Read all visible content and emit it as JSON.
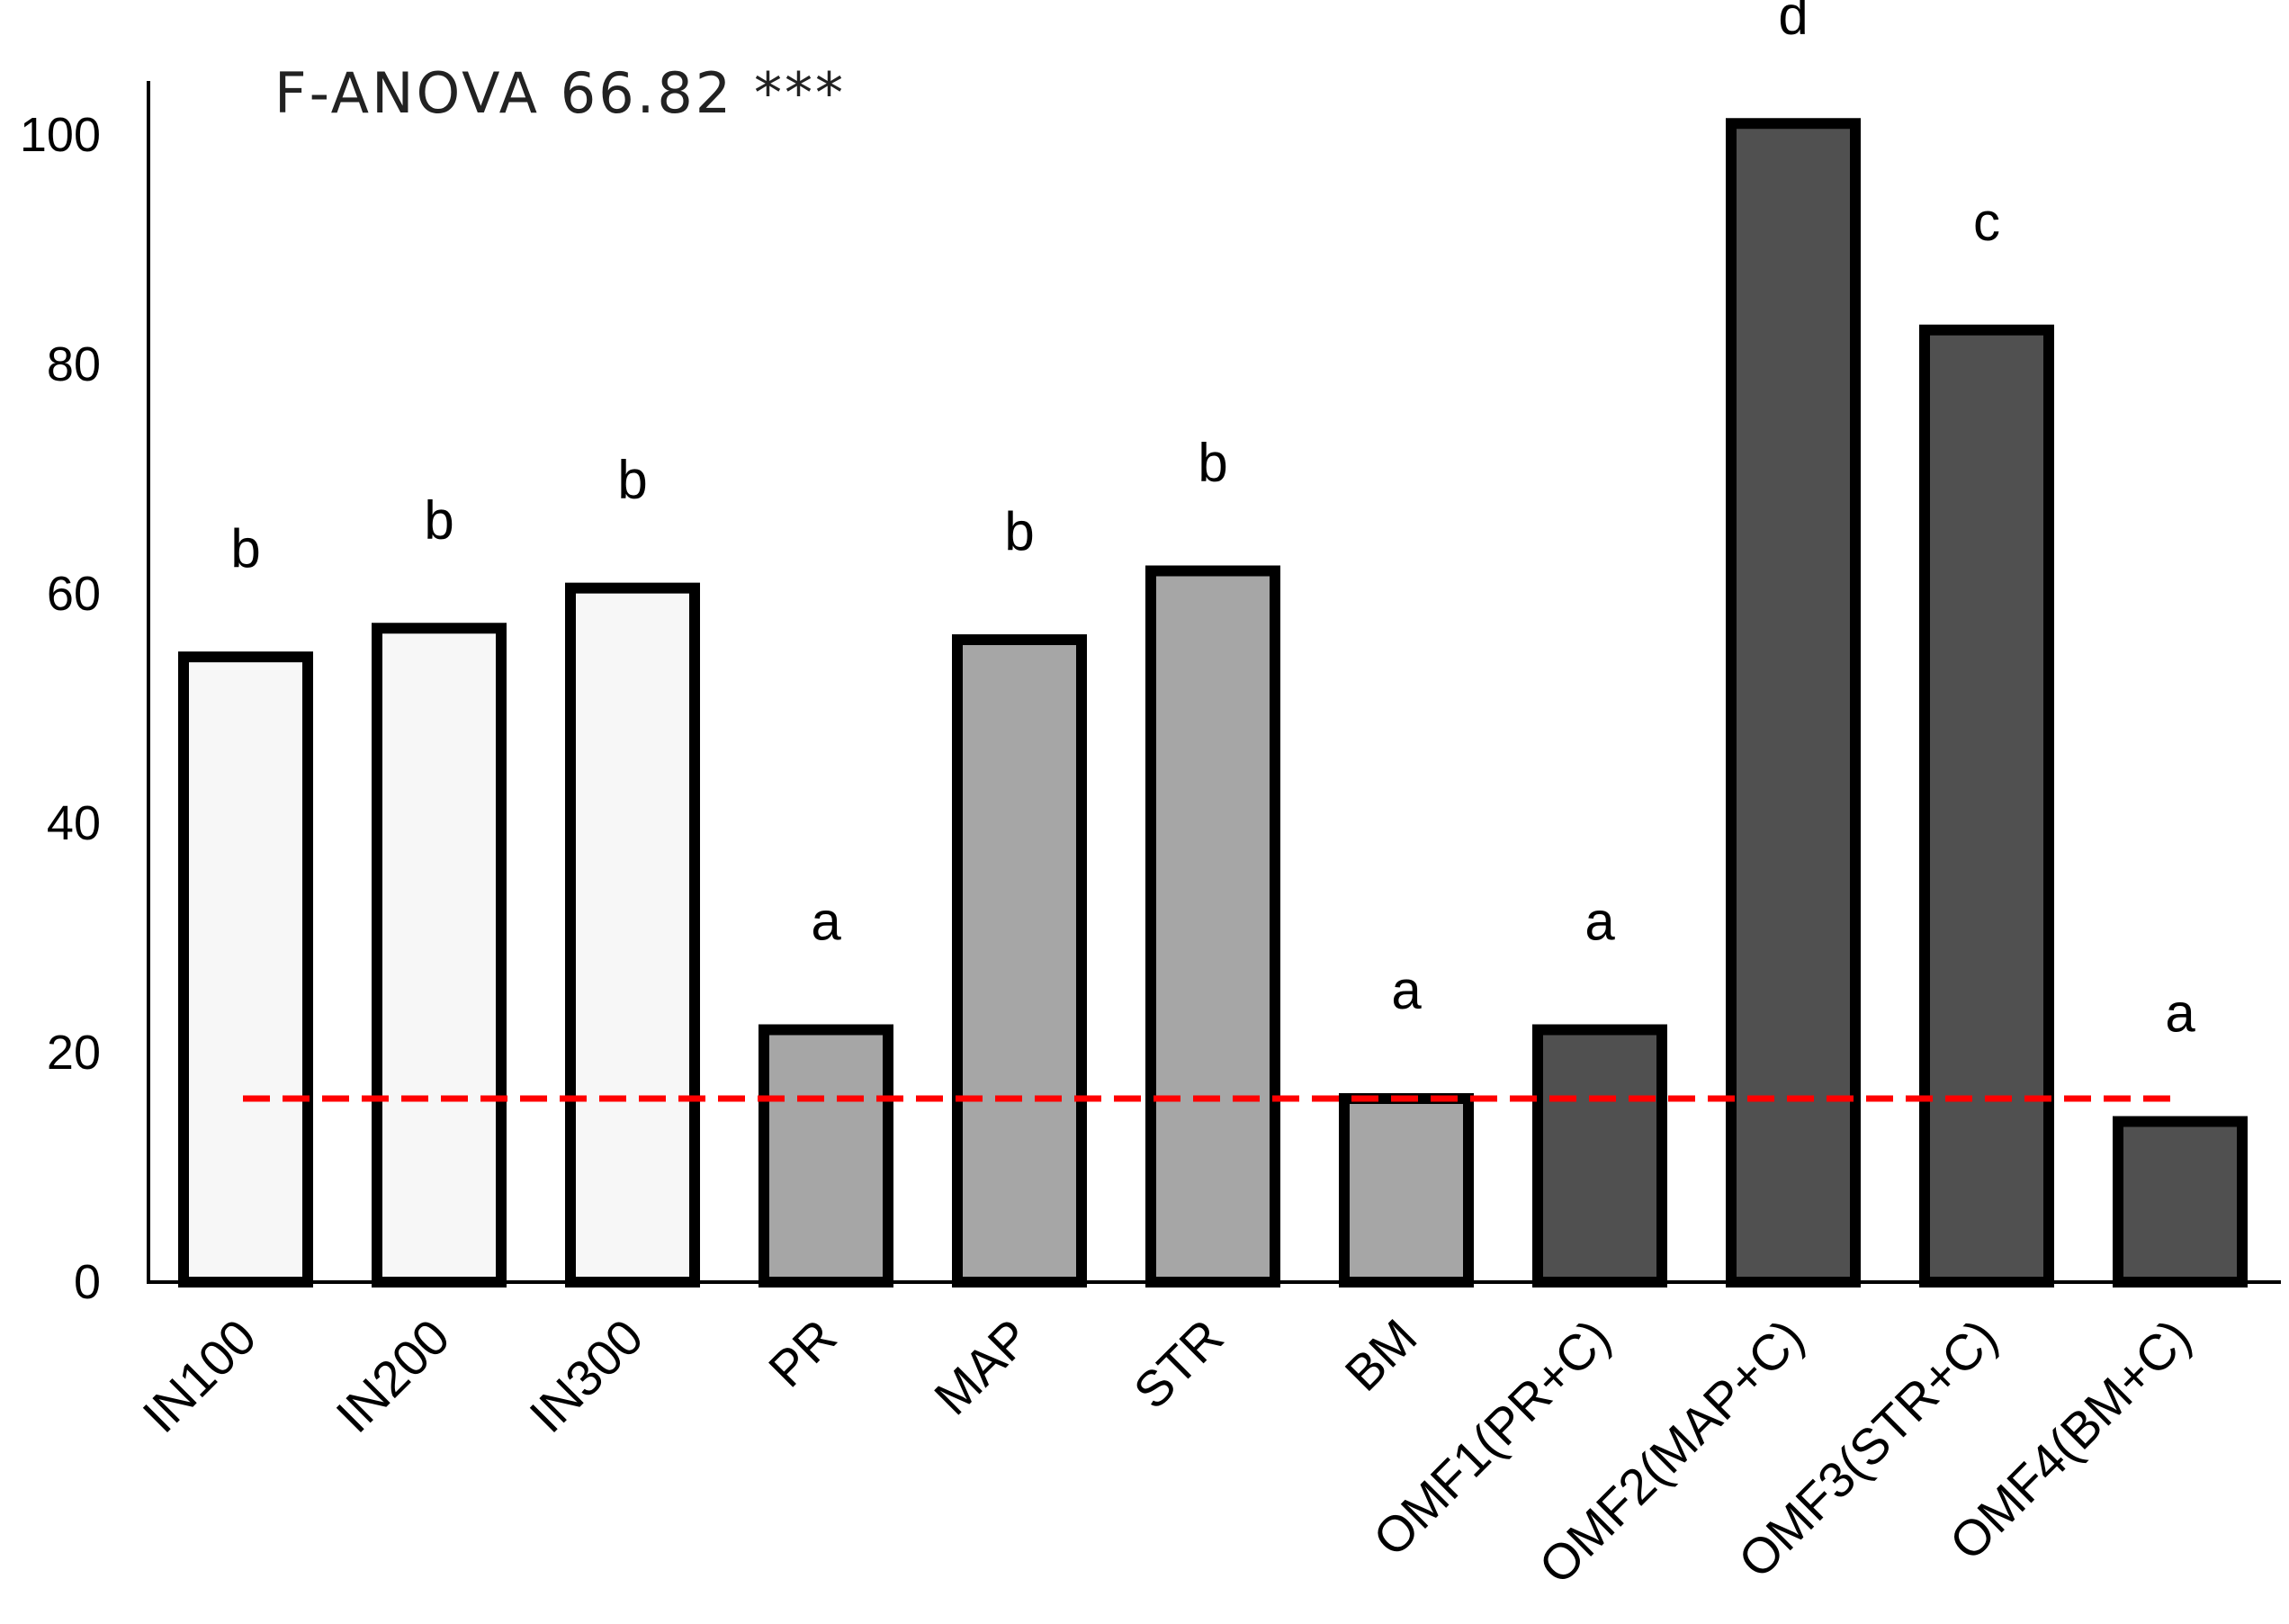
{
  "chart_data": {
    "type": "bar",
    "title": "",
    "annotation": "F-ANOVA 66.82 ***",
    "xlabel": "",
    "ylabel": "",
    "ylim": [
      0,
      100
    ],
    "yticks": [
      0,
      20,
      40,
      60,
      80,
      100
    ],
    "categories": [
      "IN100",
      "IN200",
      "IN300",
      "PR",
      "MAP",
      "STR",
      "BM",
      "OMF1(PR+C)",
      "OMF2(MAP+C)",
      "OMF3(STR+C)",
      "OMF4(BM+C)"
    ],
    "values": [
      54.5,
      57,
      60.5,
      22,
      56,
      62,
      16,
      22,
      101,
      83,
      14
    ],
    "significance_letters": [
      "b",
      "b",
      "b",
      "a",
      "b",
      "b",
      "a",
      "a",
      "d",
      "c",
      "a"
    ],
    "bar_colors": [
      "#f7f7f7",
      "#f7f7f7",
      "#f7f7f7",
      "#a6a6a6",
      "#a6a6a6",
      "#a6a6a6",
      "#a6a6a6",
      "#505050",
      "#505050",
      "#505050",
      "#505050"
    ],
    "reference_line": {
      "value": 16,
      "color": "#ff0000",
      "style": "dashed"
    },
    "grid": false,
    "legend": "none"
  }
}
